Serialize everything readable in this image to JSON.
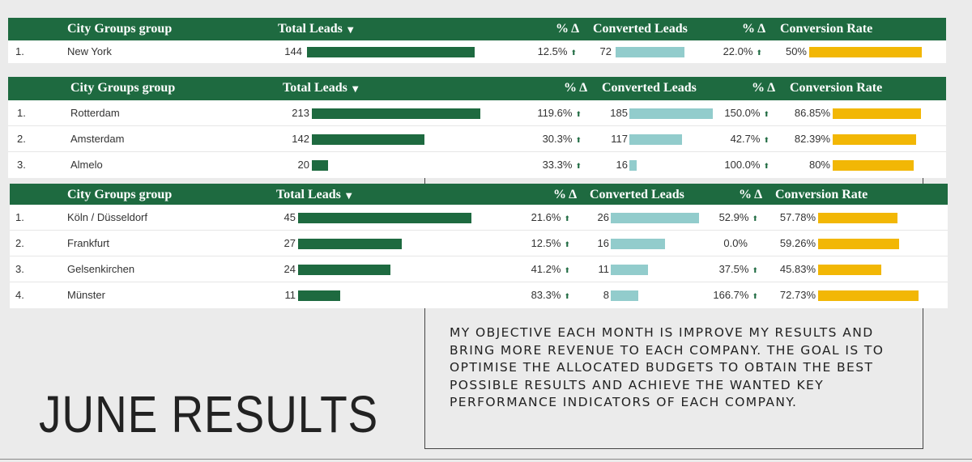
{
  "page": {
    "title": "JUNE RESULTS"
  },
  "objective_text": "MY OBJECTIVE EACH MONTH IS IMPROVE MY RESULTS AND BRING MORE REVENUE TO EACH COMPANY. THE GOAL IS TO OPTIMISE THE ALLOCATED BUDGETS TO OBTAIN THE BEST POSSIBLE RESULTS AND ACHIEVE THE WANTED KEY PERFORMANCE INDICATORS OF EACH COMPANY.",
  "headers": {
    "group": "City Groups group",
    "total_leads": "Total Leads",
    "sort_icon": "▼",
    "pct_delta": "% Δ",
    "converted_leads": "Converted Leads",
    "conversion_rate": "Conversion Rate",
    "up_arrow": "⬆"
  },
  "colors": {
    "header_bg": "#1e6a40",
    "leads_bar": "#1e6a40",
    "converted_bar": "#92cccc",
    "rate_bar": "#f2b705"
  },
  "tables": [
    {
      "rows": [
        {
          "index": "1.",
          "group": "New York",
          "total_leads": "144",
          "leads_frac": 1.0,
          "leads_delta": "12.5%",
          "leads_up": true,
          "converted": "72",
          "conv_frac": 0.65,
          "conv_delta": "22.0%",
          "conv_up": true,
          "rate": "50%",
          "rate_frac": 0.98
        }
      ]
    },
    {
      "rows": [
        {
          "index": "1.",
          "group": "Rotterdam",
          "total_leads": "213",
          "leads_frac": 1.0,
          "leads_delta": "119.6%",
          "leads_up": true,
          "converted": "185",
          "conv_frac": 1.0,
          "conv_delta": "150.0%",
          "conv_up": true,
          "rate": "86.85%",
          "rate_frac": 1.0
        },
        {
          "index": "2.",
          "group": "Amsterdam",
          "total_leads": "142",
          "leads_frac": 0.667,
          "leads_delta": "30.3%",
          "leads_up": true,
          "converted": "117",
          "conv_frac": 0.632,
          "conv_delta": "42.7%",
          "conv_up": true,
          "rate": "82.39%",
          "rate_frac": 0.949
        },
        {
          "index": "3.",
          "group": "Almelo",
          "total_leads": "20",
          "leads_frac": 0.094,
          "leads_delta": "33.3%",
          "leads_up": true,
          "converted": "16",
          "conv_frac": 0.086,
          "conv_delta": "100.0%",
          "conv_up": true,
          "rate": "80%",
          "rate_frac": 0.921
        }
      ]
    },
    {
      "rows": [
        {
          "index": "1.",
          "group": "Köln / Düsseldorf",
          "total_leads": "45",
          "leads_frac": 1.0,
          "leads_delta": "21.6%",
          "leads_up": true,
          "converted": "26",
          "conv_frac": 1.0,
          "conv_delta": "52.9%",
          "conv_up": true,
          "rate": "57.78%",
          "rate_frac": 0.79
        },
        {
          "index": "2.",
          "group": "Frankfurt",
          "total_leads": "27",
          "leads_frac": 0.6,
          "leads_delta": "12.5%",
          "leads_up": true,
          "converted": "16",
          "conv_frac": 0.615,
          "conv_delta": "0.0%",
          "conv_up": false,
          "rate": "59.26%",
          "rate_frac": 0.81
        },
        {
          "index": "3.",
          "group": "Gelsenkirchen",
          "total_leads": "24",
          "leads_frac": 0.533,
          "leads_delta": "41.2%",
          "leads_up": true,
          "converted": "11",
          "conv_frac": 0.423,
          "conv_delta": "37.5%",
          "conv_up": true,
          "rate": "45.83%",
          "rate_frac": 0.63
        },
        {
          "index": "4.",
          "group": "Münster",
          "total_leads": "11",
          "leads_frac": 0.244,
          "leads_delta": "83.3%",
          "leads_up": true,
          "converted": "8",
          "conv_frac": 0.308,
          "conv_delta": "166.7%",
          "conv_up": true,
          "rate": "72.73%",
          "rate_frac": 1.0
        }
      ]
    }
  ]
}
